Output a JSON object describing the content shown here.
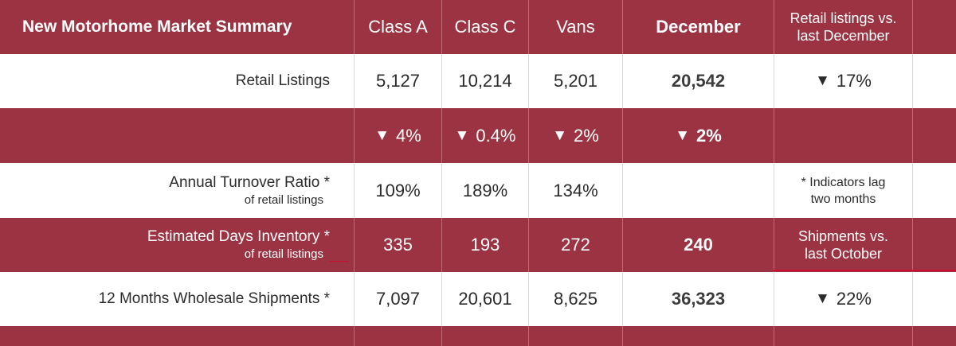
{
  "header": {
    "title": "New Motorhome Market Summary",
    "class_a": "Class A",
    "class_c": "Class C",
    "vans": "Vans",
    "december": "December",
    "retail_vs_line1": "Retail listings vs.",
    "retail_vs_line2": "last December"
  },
  "rows": {
    "retail": {
      "label": "Retail Listings",
      "class_a": "5,127",
      "class_c": "10,214",
      "vans": "5,201",
      "december": "20,542",
      "change": "17%",
      "change_icon": "down-triangle"
    },
    "change": {
      "class_a": "4%",
      "class_c": "0.4%",
      "vans": "2%",
      "december": "2%"
    },
    "turnover": {
      "label": "Annual Turnover Ratio *",
      "sub": "of retail listings",
      "class_a": "109%",
      "class_c": "189%",
      "vans": "134%",
      "note_line1": "* Indicators lag",
      "note_line2": "two months"
    },
    "days": {
      "label": "Estimated Days Inventory *",
      "sub": "of retail listings",
      "class_a": "335",
      "class_c": "193",
      "vans": "272",
      "december": "240",
      "note_line1": "Shipments vs.",
      "note_line2": "last October"
    },
    "shipments": {
      "label": "12 Months Wholesale Shipments *",
      "class_a": "7,097",
      "class_c": "20,601",
      "vans": "8,625",
      "december": "36,323",
      "change": "22%",
      "change_icon": "down-triangle"
    }
  },
  "colors": {
    "accent": "#9b3342",
    "text": "#2b2b2b",
    "rule": "#c8102e"
  }
}
